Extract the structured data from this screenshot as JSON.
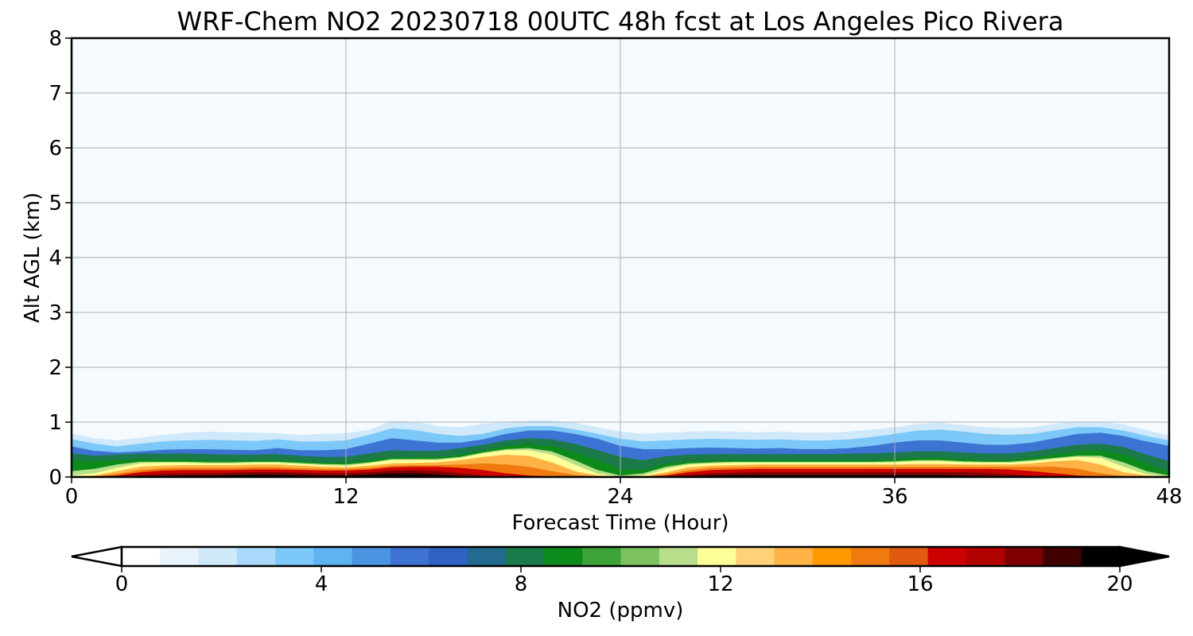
{
  "chart_data": {
    "type": "heatmap",
    "title": "WRF-Chem NO2  20230718 00UTC 48h fcst at Los Angeles Pico Rivera",
    "xlabel": "Forecast Time (Hour)",
    "ylabel": "Alt AGL (km)",
    "xlim": [
      0,
      48
    ],
    "ylim": [
      0,
      8
    ],
    "xticks": [
      0,
      12,
      24,
      36,
      48
    ],
    "yticks": [
      0,
      1,
      2,
      3,
      4,
      5,
      6,
      7,
      8
    ],
    "grid": true,
    "colorbar": {
      "label": "NO2  (ppmv)",
      "min": 0,
      "max": 20,
      "ticks": [
        0,
        4,
        8,
        12,
        16,
        20
      ],
      "extend": "both",
      "orientation": "horizontal",
      "colors": [
        "#ffffff",
        "#e8f3fb",
        "#cfe8fa",
        "#a9dafb",
        "#7cc8f8",
        "#5eb3f0",
        "#4a94e2",
        "#3d73d2",
        "#2f62c4",
        "#236b8e",
        "#1a7a4a",
        "#0c8a1a",
        "#3ea33a",
        "#7cc25e",
        "#b7de8a",
        "#ffff99",
        "#ffd27a",
        "#ffb347",
        "#ff9900",
        "#f07a10",
        "#e05a10",
        "#cc0000",
        "#b00000",
        "#7f0000",
        "#400000",
        "#000000"
      ]
    },
    "layers": [
      {
        "level": 0.5,
        "color": "#cfe8fa",
        "top_km": [
          0.78,
          0.7,
          0.66,
          0.71,
          0.76,
          0.8,
          0.82,
          0.81,
          0.8,
          0.79,
          0.76,
          0.78,
          0.79,
          0.85,
          1.02,
          1.0,
          0.92,
          0.9,
          0.96,
          1.0,
          1.02,
          1.02,
          0.98,
          0.9,
          0.82,
          0.78,
          0.8,
          0.82,
          0.83,
          0.82,
          0.81,
          0.82,
          0.8,
          0.8,
          0.82,
          0.86,
          0.9,
          0.96,
          0.98,
          0.94,
          0.9,
          0.88,
          0.9,
          0.96,
          1.0,
          1.0,
          0.95,
          0.85,
          0.75
        ]
      },
      {
        "level": 2.5,
        "color": "#7cc8f8",
        "top_km": [
          0.68,
          0.6,
          0.55,
          0.6,
          0.64,
          0.66,
          0.67,
          0.66,
          0.65,
          0.68,
          0.64,
          0.64,
          0.66,
          0.76,
          0.88,
          0.85,
          0.78,
          0.74,
          0.78,
          0.88,
          0.92,
          0.92,
          0.86,
          0.78,
          0.69,
          0.64,
          0.66,
          0.68,
          0.69,
          0.68,
          0.67,
          0.68,
          0.66,
          0.66,
          0.68,
          0.72,
          0.78,
          0.84,
          0.86,
          0.82,
          0.78,
          0.76,
          0.78,
          0.84,
          0.9,
          0.9,
          0.84,
          0.74,
          0.66
        ]
      },
      {
        "level": 4.5,
        "color": "#3d73d2",
        "top_km": [
          0.55,
          0.47,
          0.44,
          0.46,
          0.49,
          0.5,
          0.5,
          0.49,
          0.48,
          0.52,
          0.48,
          0.48,
          0.5,
          0.6,
          0.7,
          0.66,
          0.62,
          0.62,
          0.68,
          0.78,
          0.84,
          0.84,
          0.78,
          0.69,
          0.56,
          0.5,
          0.5,
          0.52,
          0.53,
          0.52,
          0.51,
          0.52,
          0.5,
          0.5,
          0.52,
          0.56,
          0.62,
          0.66,
          0.66,
          0.62,
          0.58,
          0.58,
          0.62,
          0.7,
          0.78,
          0.8,
          0.74,
          0.64,
          0.56
        ]
      },
      {
        "level": 6.5,
        "color": "#1a7a4a",
        "top_km": [
          0.42,
          0.38,
          0.4,
          0.42,
          0.42,
          0.42,
          0.41,
          0.4,
          0.4,
          0.41,
          0.38,
          0.36,
          0.36,
          0.42,
          0.48,
          0.47,
          0.47,
          0.52,
          0.58,
          0.66,
          0.7,
          0.68,
          0.6,
          0.48,
          0.36,
          0.3,
          0.37,
          0.4,
          0.41,
          0.41,
          0.41,
          0.41,
          0.41,
          0.41,
          0.42,
          0.42,
          0.44,
          0.46,
          0.46,
          0.44,
          0.42,
          0.42,
          0.46,
          0.52,
          0.58,
          0.6,
          0.54,
          0.4,
          0.28
        ]
      },
      {
        "level": 7.5,
        "color": "#0c8a1a",
        "top_km": [
          0.3,
          0.28,
          0.3,
          0.32,
          0.31,
          0.31,
          0.3,
          0.29,
          0.3,
          0.3,
          0.28,
          0.26,
          0.26,
          0.3,
          0.36,
          0.36,
          0.36,
          0.4,
          0.48,
          0.56,
          0.6,
          0.56,
          0.44,
          0.3,
          0.14,
          0.12,
          0.24,
          0.28,
          0.3,
          0.3,
          0.3,
          0.3,
          0.3,
          0.3,
          0.3,
          0.3,
          0.32,
          0.34,
          0.34,
          0.32,
          0.3,
          0.3,
          0.34,
          0.4,
          0.46,
          0.48,
          0.4,
          0.24,
          0.08
        ]
      },
      {
        "level": 9.0,
        "color": "#b7de8a",
        "top_km": [
          0.1,
          0.14,
          0.22,
          0.27,
          0.27,
          0.27,
          0.26,
          0.26,
          0.27,
          0.27,
          0.25,
          0.23,
          0.22,
          0.26,
          0.32,
          0.32,
          0.32,
          0.36,
          0.44,
          0.5,
          0.52,
          0.46,
          0.3,
          0.12,
          0.02,
          0.06,
          0.18,
          0.24,
          0.26,
          0.27,
          0.27,
          0.27,
          0.27,
          0.27,
          0.27,
          0.27,
          0.28,
          0.3,
          0.3,
          0.28,
          0.27,
          0.27,
          0.3,
          0.34,
          0.38,
          0.38,
          0.26,
          0.1,
          0.02
        ]
      },
      {
        "level": 10.0,
        "color": "#ffff99",
        "top_km": [
          0.02,
          0.06,
          0.16,
          0.24,
          0.25,
          0.25,
          0.24,
          0.24,
          0.25,
          0.25,
          0.23,
          0.21,
          0.2,
          0.24,
          0.3,
          0.3,
          0.3,
          0.34,
          0.42,
          0.48,
          0.48,
          0.4,
          0.22,
          0.05,
          0.0,
          0.02,
          0.14,
          0.22,
          0.24,
          0.25,
          0.25,
          0.25,
          0.25,
          0.25,
          0.25,
          0.25,
          0.26,
          0.28,
          0.28,
          0.26,
          0.25,
          0.25,
          0.28,
          0.32,
          0.36,
          0.34,
          0.18,
          0.04,
          0.0
        ]
      },
      {
        "level": 12.0,
        "color": "#ffb347",
        "top_km": [
          0.0,
          0.02,
          0.1,
          0.18,
          0.2,
          0.21,
          0.21,
          0.21,
          0.22,
          0.22,
          0.2,
          0.18,
          0.17,
          0.2,
          0.24,
          0.25,
          0.26,
          0.3,
          0.36,
          0.4,
          0.38,
          0.26,
          0.1,
          0.02,
          0.0,
          0.0,
          0.08,
          0.17,
          0.2,
          0.21,
          0.22,
          0.22,
          0.22,
          0.22,
          0.22,
          0.22,
          0.22,
          0.23,
          0.23,
          0.22,
          0.22,
          0.22,
          0.24,
          0.28,
          0.3,
          0.22,
          0.08,
          0.02,
          0.0
        ]
      },
      {
        "level": 13.5,
        "color": "#f07a10",
        "top_km": [
          0.0,
          0.0,
          0.05,
          0.12,
          0.15,
          0.16,
          0.16,
          0.16,
          0.17,
          0.17,
          0.15,
          0.14,
          0.14,
          0.16,
          0.2,
          0.21,
          0.21,
          0.22,
          0.24,
          0.22,
          0.18,
          0.1,
          0.03,
          0.0,
          0.0,
          0.0,
          0.04,
          0.12,
          0.16,
          0.17,
          0.18,
          0.18,
          0.18,
          0.18,
          0.18,
          0.18,
          0.18,
          0.18,
          0.18,
          0.18,
          0.18,
          0.18,
          0.18,
          0.18,
          0.14,
          0.06,
          0.01,
          0.0,
          0.0
        ]
      },
      {
        "level": 15.0,
        "color": "#cc0000",
        "top_km": [
          0.0,
          0.0,
          0.02,
          0.08,
          0.11,
          0.12,
          0.12,
          0.12,
          0.13,
          0.13,
          0.12,
          0.11,
          0.11,
          0.13,
          0.17,
          0.18,
          0.18,
          0.16,
          0.12,
          0.06,
          0.02,
          0.0,
          0.0,
          0.0,
          0.0,
          0.0,
          0.02,
          0.08,
          0.12,
          0.13,
          0.14,
          0.14,
          0.14,
          0.14,
          0.14,
          0.14,
          0.14,
          0.14,
          0.14,
          0.14,
          0.14,
          0.13,
          0.1,
          0.06,
          0.02,
          0.0,
          0.0,
          0.0,
          0.0
        ]
      },
      {
        "level": 17.0,
        "color": "#7f0000",
        "top_km": [
          0.0,
          0.0,
          0.0,
          0.03,
          0.05,
          0.06,
          0.06,
          0.07,
          0.08,
          0.08,
          0.07,
          0.06,
          0.06,
          0.08,
          0.11,
          0.11,
          0.1,
          0.06,
          0.02,
          0.0,
          0.0,
          0.0,
          0.0,
          0.0,
          0.0,
          0.0,
          0.0,
          0.03,
          0.06,
          0.07,
          0.08,
          0.08,
          0.08,
          0.08,
          0.08,
          0.08,
          0.08,
          0.08,
          0.08,
          0.08,
          0.07,
          0.04,
          0.01,
          0.0,
          0.0,
          0.0,
          0.0,
          0.0,
          0.0
        ]
      },
      {
        "level": 19.0,
        "color": "#200000",
        "top_km": [
          0.0,
          0.0,
          0.0,
          0.0,
          0.01,
          0.02,
          0.02,
          0.03,
          0.04,
          0.04,
          0.03,
          0.02,
          0.02,
          0.04,
          0.06,
          0.06,
          0.04,
          0.01,
          0.0,
          0.0,
          0.0,
          0.0,
          0.0,
          0.0,
          0.0,
          0.0,
          0.0,
          0.0,
          0.02,
          0.03,
          0.03,
          0.03,
          0.03,
          0.03,
          0.03,
          0.03,
          0.03,
          0.03,
          0.03,
          0.02,
          0.01,
          0.0,
          0.0,
          0.0,
          0.0,
          0.0,
          0.0,
          0.0,
          0.0
        ]
      }
    ],
    "background_color": "#f5fafe"
  }
}
